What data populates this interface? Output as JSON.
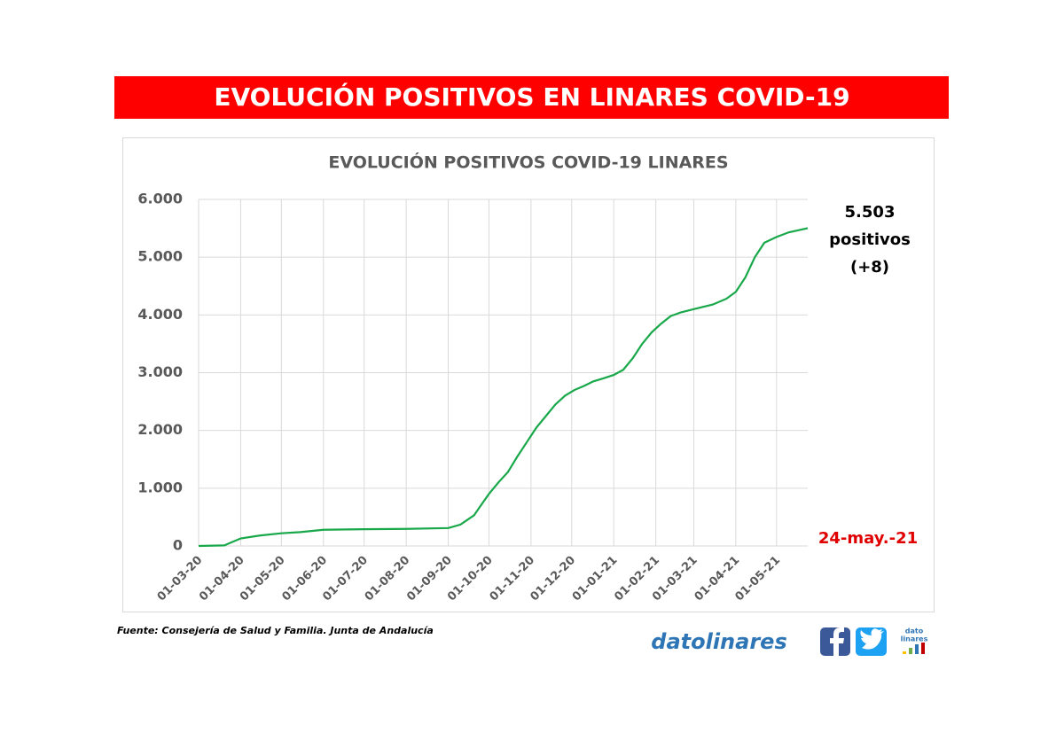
{
  "header": {
    "title": "EVOLUCIÓN POSITIVOS EN LINARES COVID-19"
  },
  "chart_data": {
    "type": "line",
    "title": "EVOLUCIÓN POSITIVOS COVID-19 LINARES",
    "x": [
      "2020-03-01",
      "2020-03-20",
      "2020-04-01",
      "2020-04-15",
      "2020-05-01",
      "2020-05-15",
      "2020-06-01",
      "2020-07-01",
      "2020-08-01",
      "2020-09-01",
      "2020-09-10",
      "2020-09-20",
      "2020-09-25",
      "2020-10-01",
      "2020-10-08",
      "2020-10-15",
      "2020-10-22",
      "2020-10-29",
      "2020-11-05",
      "2020-11-12",
      "2020-11-19",
      "2020-11-26",
      "2020-12-03",
      "2020-12-10",
      "2020-12-17",
      "2020-12-24",
      "2021-01-01",
      "2021-01-08",
      "2021-01-15",
      "2021-01-22",
      "2021-01-29",
      "2021-02-05",
      "2021-02-12",
      "2021-02-19",
      "2021-03-01",
      "2021-03-15",
      "2021-03-25",
      "2021-04-01",
      "2021-04-08",
      "2021-04-15",
      "2021-04-22",
      "2021-05-01",
      "2021-05-10",
      "2021-05-24"
    ],
    "series": [
      {
        "color": "#18a84a",
        "values": [
          0,
          10,
          130,
          180,
          220,
          240,
          280,
          290,
          295,
          310,
          370,
          530,
          700,
          900,
          1100,
          1280,
          1550,
          1800,
          2050,
          2250,
          2450,
          2600,
          2700,
          2770,
          2850,
          2900,
          2960,
          3050,
          3250,
          3500,
          3700,
          3850,
          3980,
          4040,
          4100,
          4180,
          4280,
          4400,
          4650,
          5000,
          5250,
          5350,
          5430,
          5503
        ]
      }
    ],
    "xlim": [
      "2020-03-01",
      "2021-05-24"
    ],
    "xticks": [
      {
        "value": "2020-03-01",
        "label": "01-03-20"
      },
      {
        "value": "2020-04-01",
        "label": "01-04-20"
      },
      {
        "value": "2020-05-01",
        "label": "01-05-20"
      },
      {
        "value": "2020-06-01",
        "label": "01-06-20"
      },
      {
        "value": "2020-07-01",
        "label": "01-07-20"
      },
      {
        "value": "2020-08-01",
        "label": "01-08-20"
      },
      {
        "value": "2020-09-01",
        "label": "01-09-20"
      },
      {
        "value": "2020-10-01",
        "label": "01-10-20"
      },
      {
        "value": "2020-11-01",
        "label": "01-11-20"
      },
      {
        "value": "2020-12-01",
        "label": "01-12-20"
      },
      {
        "value": "2021-01-01",
        "label": "01-01-21"
      },
      {
        "value": "2021-02-01",
        "label": "01-02-21"
      },
      {
        "value": "2021-03-01",
        "label": "01-03-21"
      },
      {
        "value": "2021-04-01",
        "label": "01-04-21"
      },
      {
        "value": "2021-05-01",
        "label": "01-05-21"
      }
    ],
    "ylim": [
      0,
      6000
    ],
    "yticks": [
      0,
      {
        "value": 1000,
        "label": "1.000"
      },
      {
        "value": 2000,
        "label": "2.000"
      },
      {
        "value": 3000,
        "label": "3.000"
      },
      {
        "value": 4000,
        "label": "4.000"
      },
      {
        "value": 5000,
        "label": "5.000"
      },
      {
        "value": 6000,
        "label": "6.000"
      }
    ],
    "grid": true,
    "annotations": [
      "5.503",
      "positivos",
      "(+8)",
      "24-may.-21"
    ]
  },
  "footer": {
    "source": "Fuente: Consejería de Salud y Familia. Junta de Andalucía",
    "brand": "datolinares",
    "logo": [
      "dato",
      "linares"
    ]
  }
}
